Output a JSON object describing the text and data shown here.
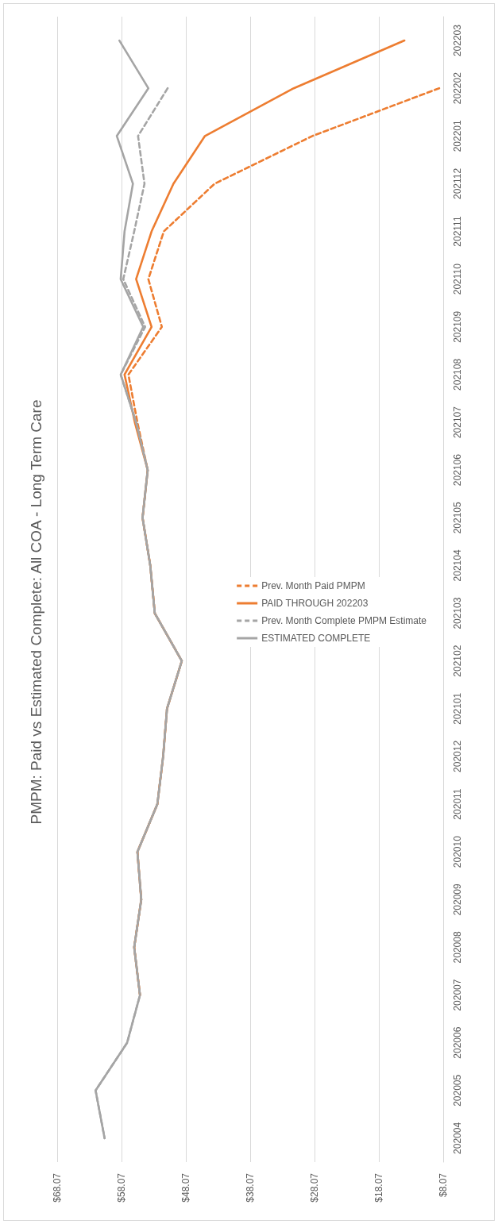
{
  "chart_data": {
    "type": "line",
    "orientation": "horizontal",
    "title": "PMPM: Paid vs Estimated Complete: All COA - Long Term Care",
    "categories": [
      "202203",
      "202202",
      "202201",
      "202112",
      "202111",
      "202110",
      "202109",
      "202108",
      "202107",
      "202106",
      "202105",
      "202104",
      "202103",
      "202102",
      "202101",
      "202012",
      "202011",
      "202010",
      "202009",
      "202008",
      "202007",
      "202006",
      "202005",
      "202004"
    ],
    "series": [
      {
        "name": "Prev. Month Paid PMPM",
        "color": "#ed7d31",
        "line_style": "dashed",
        "values": [
          null,
          8.7,
          28.4,
          43.6,
          51.5,
          53.9,
          51.8,
          57.0,
          55.6,
          54.0,
          54.8,
          53.6,
          52.9,
          48.7,
          51.0,
          51.6,
          52.5,
          55.6,
          55.0,
          56.1,
          55.2,
          null,
          null,
          null
        ]
      },
      {
        "name": "PAID THROUGH 202203",
        "color": "#ed7d31",
        "line_style": "solid",
        "values": [
          14.1,
          31.3,
          45.1,
          50.0,
          53.4,
          55.8,
          53.4,
          57.6,
          56.0,
          54.0,
          54.8,
          53.6,
          52.9,
          48.7,
          51.0,
          51.6,
          52.5,
          55.6,
          55.0,
          56.1,
          55.2,
          null,
          null,
          null
        ]
      },
      {
        "name": "Prev. Month Complete PMPM Estimate",
        "color": "#a5a5a5",
        "line_style": "dashed",
        "values": [
          null,
          50.9,
          55.5,
          54.5,
          56.1,
          57.8,
          54.4,
          58.2,
          55.8,
          54.0,
          54.8,
          53.6,
          52.9,
          48.7,
          51.0,
          51.6,
          52.5,
          55.6,
          55.0,
          56.1,
          55.2,
          57.2,
          62.1,
          60.7
        ]
      },
      {
        "name": "ESTIMATED COMPLETE",
        "color": "#a5a5a5",
        "line_style": "solid",
        "values": [
          58.4,
          53.9,
          58.8,
          56.3,
          57.6,
          58.2,
          54.7,
          58.2,
          55.8,
          54.0,
          54.8,
          53.6,
          52.9,
          48.7,
          51.0,
          51.6,
          52.5,
          55.6,
          55.0,
          56.1,
          55.2,
          57.2,
          62.1,
          60.7
        ]
      }
    ],
    "xlim": [
      68.07,
      8.07
    ],
    "xticks": [
      {
        "value": 68.07,
        "label": "$68.07"
      },
      {
        "value": 58.07,
        "label": "$58.07"
      },
      {
        "value": 48.07,
        "label": "$48.07"
      },
      {
        "value": 38.07,
        "label": "$38.07"
      },
      {
        "value": 28.07,
        "label": "$28.07"
      },
      {
        "value": 18.07,
        "label": "$18.07"
      },
      {
        "value": 8.07,
        "label": "$8.07"
      }
    ],
    "grid": "x",
    "legend": "right",
    "marker": "none"
  }
}
